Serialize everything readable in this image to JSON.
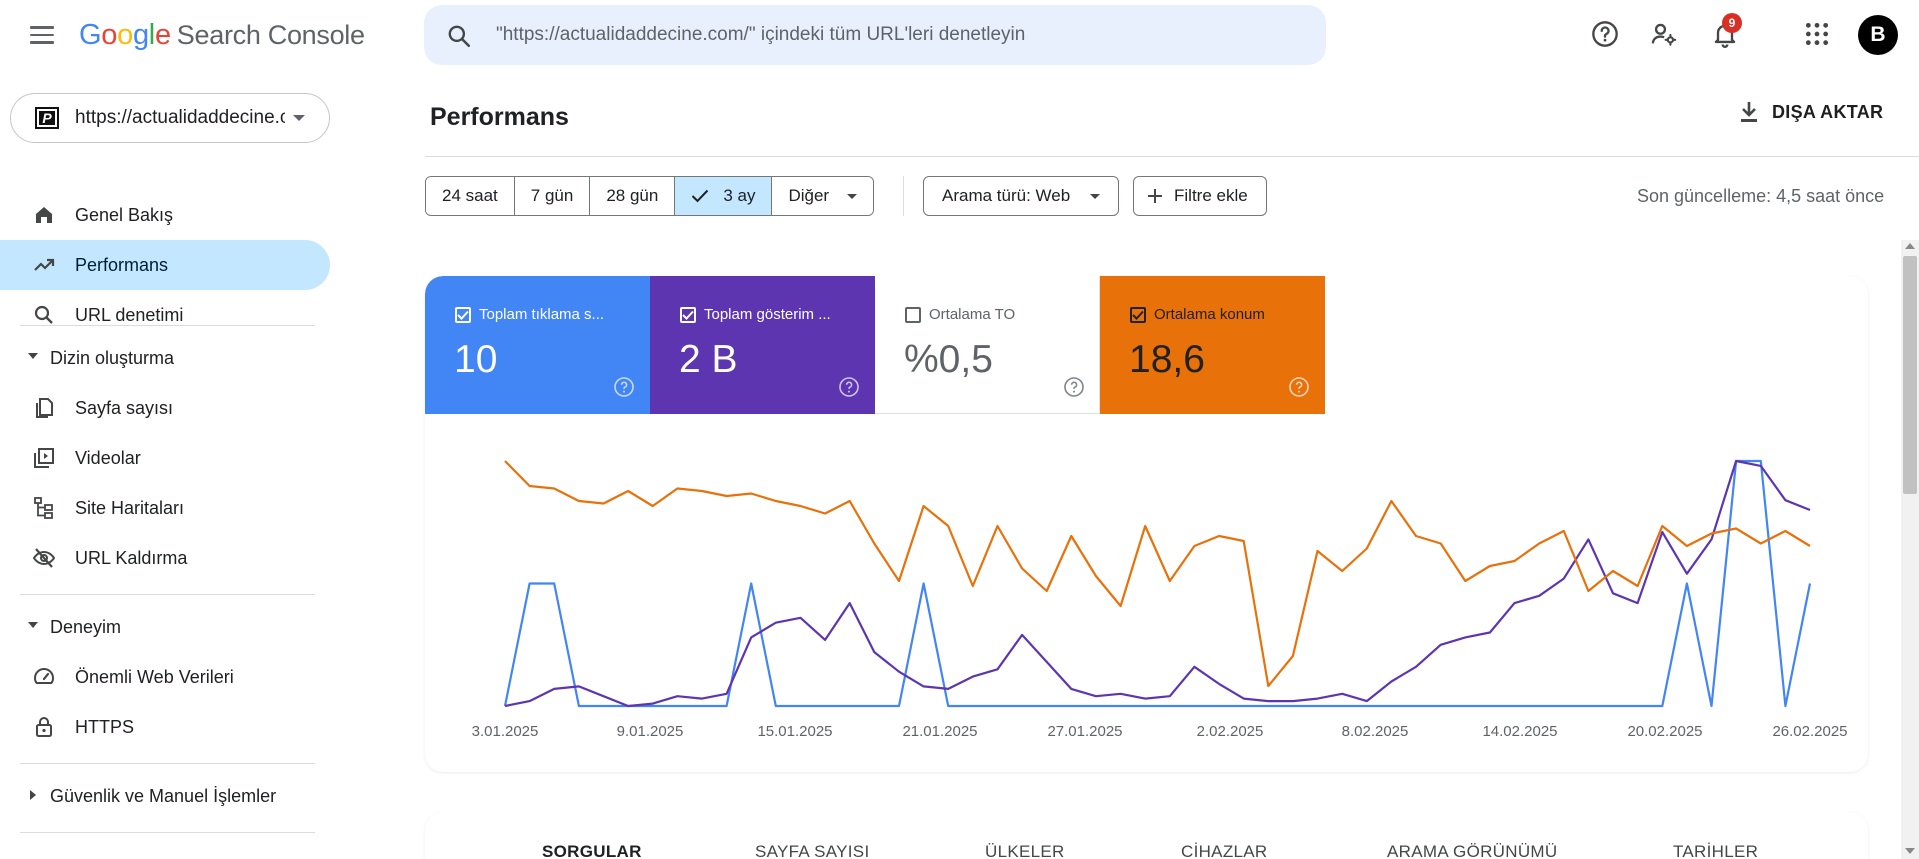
{
  "header": {
    "logo_google": "Google",
    "logo_product": "Search Console",
    "search_placeholder": "\"https://actualidaddecine.com/\" içindeki tüm URL'leri denetleyin",
    "notification_count": "9",
    "avatar_letter": "B",
    "icons": [
      "menu-icon",
      "search-icon",
      "help-icon",
      "manage-accounts-icon",
      "notifications-icon",
      "apps-icon"
    ]
  },
  "sidebar": {
    "property": "https://actualidaddecine.com/",
    "items": [
      {
        "label": "Genel Bakış",
        "icon": "home-icon"
      },
      {
        "label": "Performans",
        "icon": "trending-up-icon",
        "active": true
      },
      {
        "label": "URL denetimi",
        "icon": "search-icon"
      }
    ],
    "sections": [
      {
        "label": "Dizin oluşturma",
        "expanded": true,
        "items": [
          {
            "label": "Sayfa sayısı",
            "icon": "pages-icon"
          },
          {
            "label": "Videolar",
            "icon": "video-icon"
          },
          {
            "label": "Site Haritaları",
            "icon": "sitemap-icon"
          },
          {
            "label": "URL Kaldırma",
            "icon": "visibility-off-icon"
          }
        ]
      },
      {
        "label": "Deneyim",
        "expanded": true,
        "items": [
          {
            "label": "Önemli Web Verileri",
            "icon": "speed-icon"
          },
          {
            "label": "HTTPS",
            "icon": "lock-icon"
          }
        ]
      },
      {
        "label": "Güvenlik ve Manuel İşlemler",
        "expanded": false
      }
    ]
  },
  "main": {
    "title": "Performans",
    "export_label": "DIŞA AKTAR",
    "date_filters": [
      {
        "label": "24 saat"
      },
      {
        "label": "7 gün"
      },
      {
        "label": "28 gün"
      },
      {
        "label": "3 ay",
        "selected": true
      },
      {
        "label": "Diğer"
      }
    ],
    "search_type_label": "Arama türü: Web",
    "add_filter_label": "Filtre ekle",
    "last_updated": "Son güncelleme: 4,5 saat önce",
    "metrics": [
      {
        "label": "Toplam tıklama sayısı",
        "display_label": "Toplam tıklama s...",
        "value": "10",
        "checked": true,
        "color": "#4285f4"
      },
      {
        "label": "Toplam gösterim sayısı",
        "display_label": "Toplam gösterim ...",
        "value": "2 B",
        "checked": true,
        "color": "#5e35b1"
      },
      {
        "label": "Ortalama TO",
        "display_label": "Ortalama TO",
        "value": "%0,5",
        "checked": false,
        "color": "#ffffff"
      },
      {
        "label": "Ortalama konum",
        "display_label": "Ortalama konum",
        "value": "18,6",
        "checked": true,
        "color": "#e8710a"
      }
    ],
    "tabs": [
      {
        "label": "SORGULAR",
        "active": true
      },
      {
        "label": "SAYFA SAYISI"
      },
      {
        "label": "ÜLKELER"
      },
      {
        "label": "CİHAZLAR"
      },
      {
        "label": "ARAMA GÖRÜNÜMÜ"
      },
      {
        "label": "TARİHLER"
      }
    ]
  },
  "chart_data": {
    "type": "line",
    "x_tick_labels": [
      "3.01.2025",
      "9.01.2025",
      "15.01.2025",
      "21.01.2025",
      "27.01.2025",
      "2.02.2025",
      "8.02.2025",
      "14.02.2025",
      "20.02.2025",
      "26.02.2025"
    ],
    "grid": false,
    "legend": "none",
    "series": [
      {
        "name": "Toplam tıklama sayısı",
        "color": "#4285f4",
        "scale": "normalized 0-1",
        "values": [
          0,
          1,
          1,
          0,
          0,
          0,
          0,
          0,
          0,
          0,
          1,
          0,
          0,
          0,
          0,
          0,
          0,
          1,
          0,
          0,
          0,
          0,
          0,
          0,
          0,
          0,
          0,
          0,
          0,
          0,
          0,
          0,
          0,
          0,
          0,
          0,
          0,
          0,
          0,
          0,
          0,
          0,
          0,
          0,
          0,
          0,
          0,
          0,
          1,
          0,
          2,
          2,
          0,
          1
        ]
      },
      {
        "name": "Toplam gösterim sayısı",
        "color": "#5e35b1",
        "scale": "normalized 0-1",
        "values": [
          0.0,
          0.02,
          0.07,
          0.08,
          0.04,
          0.0,
          0.01,
          0.04,
          0.03,
          0.05,
          0.28,
          0.34,
          0.36,
          0.27,
          0.42,
          0.22,
          0.14,
          0.08,
          0.07,
          0.12,
          0.15,
          0.29,
          0.18,
          0.07,
          0.04,
          0.05,
          0.03,
          0.04,
          0.16,
          0.09,
          0.03,
          0.02,
          0.02,
          0.03,
          0.05,
          0.02,
          0.1,
          0.16,
          0.25,
          0.28,
          0.3,
          0.42,
          0.45,
          0.52,
          0.68,
          0.46,
          0.42,
          0.71,
          0.54,
          0.68,
          1.0,
          0.98,
          0.84,
          0.8
        ]
      },
      {
        "name": "Ortalama konum",
        "color": "#e8710a",
        "scale": "normalized 0-1 (inverted: higher = better position)",
        "values": [
          0.98,
          0.88,
          0.87,
          0.82,
          0.81,
          0.86,
          0.8,
          0.87,
          0.86,
          0.84,
          0.85,
          0.82,
          0.8,
          0.77,
          0.82,
          0.65,
          0.5,
          0.8,
          0.72,
          0.48,
          0.72,
          0.55,
          0.46,
          0.68,
          0.52,
          0.4,
          0.72,
          0.5,
          0.64,
          0.68,
          0.66,
          0.08,
          0.2,
          0.62,
          0.54,
          0.63,
          0.82,
          0.68,
          0.65,
          0.5,
          0.56,
          0.58,
          0.65,
          0.7,
          0.46,
          0.54,
          0.48,
          0.72,
          0.64,
          0.69,
          0.71,
          0.65,
          0.7,
          0.64
        ]
      }
    ]
  }
}
